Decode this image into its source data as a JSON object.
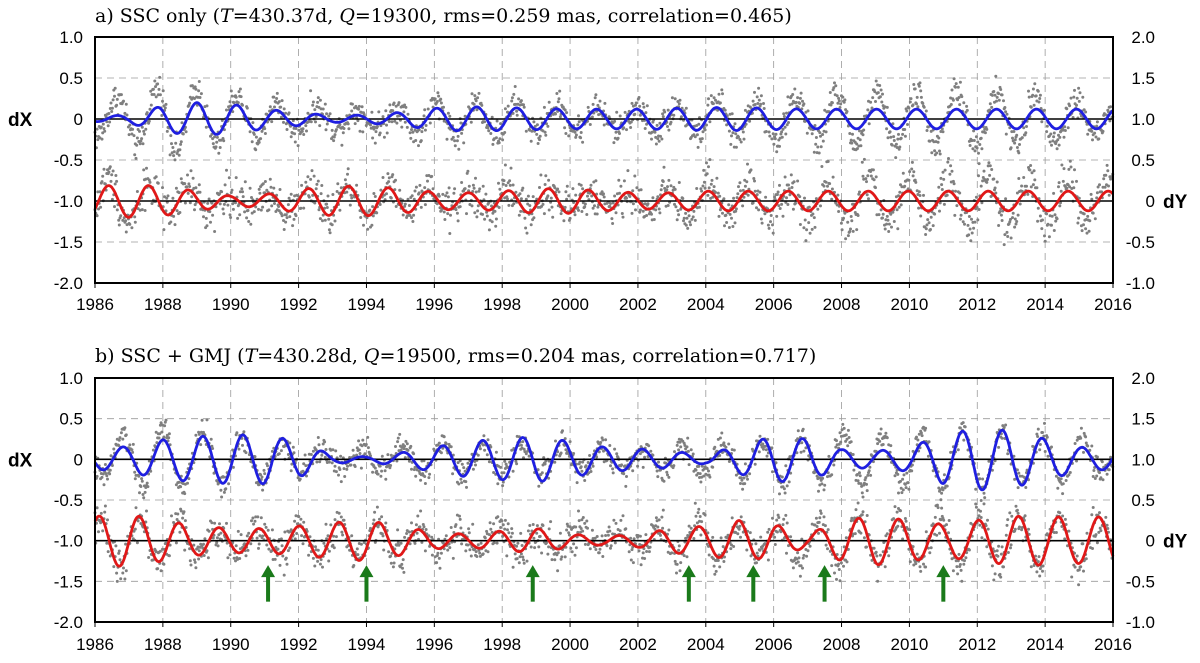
{
  "colors": {
    "dx_fit": "#1f1fe0",
    "dy_fit": "#e01818",
    "observations": "#7f7f7f",
    "arrow": "#1a7a1a",
    "zero_line": "#000000",
    "grid": "#9a9a9a"
  },
  "chart_data": [
    {
      "type": "line",
      "title_parts": [
        {
          "text": "a) SSC only ("
        },
        {
          "text": "T",
          "italic": true
        },
        {
          "text": "=430.37d, "
        },
        {
          "text": "Q",
          "italic": true
        },
        {
          "text": "=19300, rms=0.259 mas, correlation=0.465)"
        }
      ],
      "left_axis_label": "dX",
      "right_axis_label": "dY",
      "x_range": [
        1986,
        2016
      ],
      "x_ticks": [
        "1986",
        "1988",
        "1990",
        "1992",
        "1994",
        "1996",
        "1998",
        "2000",
        "2002",
        "2004",
        "2006",
        "2008",
        "2010",
        "2012",
        "2014",
        "2016"
      ],
      "y_left_range": [
        -2.0,
        1.0
      ],
      "y_left_ticks": [
        "1.0",
        "0.5",
        "0",
        "-0.5",
        "-1.0",
        "-1.5",
        "-2.0"
      ],
      "y_right_range": [
        -1.0,
        2.0
      ],
      "y_right_ticks": [
        "2.0",
        "1.5",
        "1.0",
        "0.5",
        "0",
        "-0.5",
        "-1.0"
      ],
      "grid": true,
      "series": [
        {
          "role": "dX-model",
          "baseline": 0,
          "period_days": 430.37,
          "phase_ref_year": 1989.0,
          "envelope": [
            [
              1986,
              0.03
            ],
            [
              1987,
              0.05
            ],
            [
              1988,
              0.16
            ],
            [
              1989,
              0.2
            ],
            [
              1990,
              0.18
            ],
            [
              1991,
              0.12
            ],
            [
              1992,
              0.08
            ],
            [
              1993,
              0.04
            ],
            [
              1994,
              0.05
            ],
            [
              1995,
              0.08
            ],
            [
              1996,
              0.13
            ],
            [
              1997,
              0.15
            ],
            [
              1998,
              0.14
            ],
            [
              1999,
              0.13
            ],
            [
              2000,
              0.12
            ],
            [
              2001,
              0.12
            ],
            [
              2002,
              0.12
            ],
            [
              2003,
              0.13
            ],
            [
              2004,
              0.14
            ],
            [
              2005,
              0.14
            ],
            [
              2006,
              0.13
            ],
            [
              2007,
              0.12
            ],
            [
              2008,
              0.12
            ],
            [
              2009,
              0.12
            ],
            [
              2010,
              0.12
            ],
            [
              2011,
              0.12
            ],
            [
              2012,
              0.12
            ],
            [
              2013,
              0.12
            ],
            [
              2014,
              0.12
            ],
            [
              2015,
              0.12
            ],
            [
              2016,
              0.12
            ]
          ]
        },
        {
          "role": "dY-model",
          "baseline": -1.0,
          "period_days": 430.37,
          "phase_ref_year": 1986.4,
          "envelope": [
            [
              1986,
              0.18
            ],
            [
              1987,
              0.2
            ],
            [
              1988,
              0.18
            ],
            [
              1989,
              0.12
            ],
            [
              1990,
              0.06
            ],
            [
              1991,
              0.08
            ],
            [
              1992,
              0.14
            ],
            [
              1993,
              0.18
            ],
            [
              1994,
              0.18
            ],
            [
              1995,
              0.15
            ],
            [
              1996,
              0.11
            ],
            [
              1997,
              0.1
            ],
            [
              1998,
              0.12
            ],
            [
              1999,
              0.15
            ],
            [
              2000,
              0.15
            ],
            [
              2001,
              0.12
            ],
            [
              2002,
              0.1
            ],
            [
              2003,
              0.1
            ],
            [
              2004,
              0.12
            ],
            [
              2005,
              0.12
            ],
            [
              2006,
              0.12
            ],
            [
              2007,
              0.12
            ],
            [
              2008,
              0.12
            ],
            [
              2009,
              0.12
            ],
            [
              2010,
              0.12
            ],
            [
              2011,
              0.12
            ],
            [
              2012,
              0.12
            ],
            [
              2013,
              0.12
            ],
            [
              2014,
              0.12
            ],
            [
              2015,
              0.12
            ],
            [
              2016,
              0.12
            ]
          ]
        }
      ],
      "observations": [
        {
          "role": "dX-observed",
          "baseline": 0,
          "period_days": 430.37,
          "phase_ref_year": 1989.0,
          "envelope": [
            [
              1986,
              0.2
            ],
            [
              1988,
              0.4
            ],
            [
              1990,
              0.3
            ],
            [
              1992,
              0.15
            ],
            [
              1994,
              0.1
            ],
            [
              1996,
              0.2
            ],
            [
              1998,
              0.2
            ],
            [
              2000,
              0.15
            ],
            [
              2002,
              0.12
            ],
            [
              2004,
              0.2
            ],
            [
              2006,
              0.25
            ],
            [
              2008,
              0.3
            ],
            [
              2010,
              0.3
            ],
            [
              2012,
              0.35
            ],
            [
              2014,
              0.3
            ],
            [
              2016,
              0.15
            ]
          ],
          "scatter": 0.09
        },
        {
          "role": "dY-observed",
          "baseline": -1.0,
          "period_days": 430.37,
          "phase_ref_year": 1986.4,
          "envelope": [
            [
              1986,
              0.3
            ],
            [
              1988,
              0.2
            ],
            [
              1990,
              0.08
            ],
            [
              1992,
              0.15
            ],
            [
              1994,
              0.18
            ],
            [
              1996,
              0.1
            ],
            [
              1998,
              0.15
            ],
            [
              2000,
              0.1
            ],
            [
              2002,
              0.1
            ],
            [
              2004,
              0.22
            ],
            [
              2006,
              0.15
            ],
            [
              2008,
              0.3
            ],
            [
              2010,
              0.25
            ],
            [
              2012,
              0.3
            ],
            [
              2014,
              0.3
            ],
            [
              2016,
              0.2
            ]
          ],
          "scatter": 0.12
        }
      ]
    },
    {
      "type": "line",
      "title_parts": [
        {
          "text": "b) SSC + GMJ ("
        },
        {
          "text": "T",
          "italic": true
        },
        {
          "text": "=430.28d, "
        },
        {
          "text": "Q",
          "italic": true
        },
        {
          "text": "=19500, rms=0.204 mas, correlation=0.717)"
        }
      ],
      "left_axis_label": "dX",
      "right_axis_label": "dY",
      "x_range": [
        1986,
        2016
      ],
      "x_ticks": [
        "1986",
        "1988",
        "1990",
        "1992",
        "1994",
        "1996",
        "1998",
        "2000",
        "2002",
        "2004",
        "2006",
        "2008",
        "2010",
        "2012",
        "2014",
        "2016"
      ],
      "y_left_range": [
        -2.0,
        1.0
      ],
      "y_left_ticks": [
        "1.0",
        "0.5",
        "0",
        "-0.5",
        "-1.0",
        "-1.5",
        "-2.0"
      ],
      "y_right_range": [
        -1.0,
        2.0
      ],
      "y_right_ticks": [
        "2.0",
        "1.5",
        "1.0",
        "0.5",
        "0",
        "-0.5",
        "-1.0"
      ],
      "grid": true,
      "series": [
        {
          "role": "dX-model",
          "baseline": 0,
          "period_days": 430.28,
          "phase_ref_year": 1988.0,
          "envelope": [
            [
              1986,
              0.12
            ],
            [
              1987,
              0.16
            ],
            [
              1988,
              0.24
            ],
            [
              1989,
              0.28
            ],
            [
              1990,
              0.3
            ],
            [
              1991,
              0.3
            ],
            [
              1992,
              0.22
            ],
            [
              1993,
              0.05
            ],
            [
              1994,
              0.03
            ],
            [
              1995,
              0.08
            ],
            [
              1996,
              0.15
            ],
            [
              1997,
              0.22
            ],
            [
              1998,
              0.25
            ],
            [
              1999,
              0.28
            ],
            [
              2000,
              0.22
            ],
            [
              2001,
              0.15
            ],
            [
              2002,
              0.13
            ],
            [
              2003,
              0.1
            ],
            [
              2004,
              0.05
            ],
            [
              2005,
              0.18
            ],
            [
              2006,
              0.28
            ],
            [
              2007,
              0.25
            ],
            [
              2008,
              0.12
            ],
            [
              2009,
              0.1
            ],
            [
              2010,
              0.15
            ],
            [
              2011,
              0.3
            ],
            [
              2012,
              0.38
            ],
            [
              2013,
              0.35
            ],
            [
              2014,
              0.25
            ],
            [
              2015,
              0.15
            ],
            [
              2016,
              0.12
            ]
          ]
        },
        {
          "role": "dY-model",
          "baseline": -1.0,
          "period_days": 430.28,
          "phase_ref_year": 1987.3,
          "envelope": [
            [
              1986,
              0.3
            ],
            [
              1987,
              0.32
            ],
            [
              1988,
              0.25
            ],
            [
              1989,
              0.18
            ],
            [
              1990,
              0.15
            ],
            [
              1991,
              0.15
            ],
            [
              1992,
              0.18
            ],
            [
              1993,
              0.22
            ],
            [
              1994,
              0.25
            ],
            [
              1995,
              0.18
            ],
            [
              1996,
              0.1
            ],
            [
              1997,
              0.08
            ],
            [
              1998,
              0.12
            ],
            [
              1999,
              0.15
            ],
            [
              2000,
              0.08
            ],
            [
              2001,
              0.05
            ],
            [
              2002,
              0.08
            ],
            [
              2003,
              0.15
            ],
            [
              2004,
              0.18
            ],
            [
              2005,
              0.25
            ],
            [
              2006,
              0.2
            ],
            [
              2007,
              0.08
            ],
            [
              2008,
              0.25
            ],
            [
              2009,
              0.3
            ],
            [
              2010,
              0.25
            ],
            [
              2011,
              0.2
            ],
            [
              2012,
              0.25
            ],
            [
              2013,
              0.3
            ],
            [
              2014,
              0.3
            ],
            [
              2015,
              0.28
            ],
            [
              2016,
              0.3
            ]
          ]
        }
      ],
      "observations": [
        {
          "role": "dX-observed",
          "baseline": 0,
          "period_days": 430.28,
          "phase_ref_year": 1988.0,
          "envelope": [
            [
              1986,
              0.2
            ],
            [
              1988,
              0.4
            ],
            [
              1990,
              0.3
            ],
            [
              1992,
              0.15
            ],
            [
              1994,
              0.1
            ],
            [
              1996,
              0.2
            ],
            [
              1998,
              0.2
            ],
            [
              2000,
              0.15
            ],
            [
              2002,
              0.12
            ],
            [
              2004,
              0.2
            ],
            [
              2006,
              0.25
            ],
            [
              2008,
              0.3
            ],
            [
              2010,
              0.3
            ],
            [
              2012,
              0.35
            ],
            [
              2014,
              0.3
            ],
            [
              2016,
              0.15
            ]
          ],
          "scatter": 0.08
        },
        {
          "role": "dY-observed",
          "baseline": -1.0,
          "period_days": 430.28,
          "phase_ref_year": 1987.3,
          "envelope": [
            [
              1986,
              0.3
            ],
            [
              1988,
              0.25
            ],
            [
              1990,
              0.1
            ],
            [
              1992,
              0.18
            ],
            [
              1994,
              0.2
            ],
            [
              1996,
              0.1
            ],
            [
              1998,
              0.15
            ],
            [
              2000,
              0.1
            ],
            [
              2002,
              0.1
            ],
            [
              2004,
              0.22
            ],
            [
              2006,
              0.18
            ],
            [
              2008,
              0.3
            ],
            [
              2010,
              0.25
            ],
            [
              2012,
              0.3
            ],
            [
              2014,
              0.3
            ],
            [
              2016,
              0.25
            ]
          ],
          "scatter": 0.11
        }
      ],
      "event_markers_years": [
        1991.1,
        1994.0,
        1998.9,
        2003.5,
        2005.4,
        2007.5,
        2011.0
      ],
      "event_marker_y": {
        "from": -1.75,
        "to": -1.3
      }
    }
  ]
}
